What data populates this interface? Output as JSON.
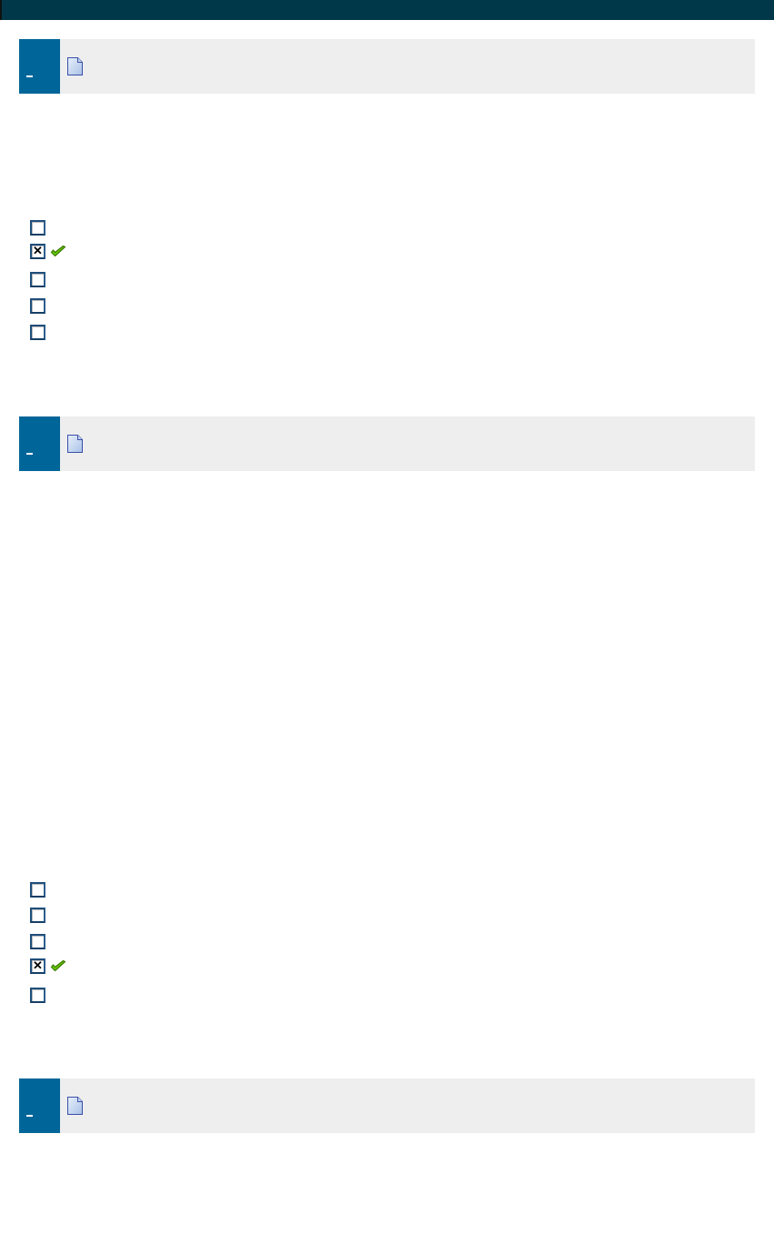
{
  "questions": [
    {
      "options": [
        {
          "checked": false
        },
        {
          "checked": true,
          "correct": true
        },
        {
          "checked": false
        },
        {
          "checked": false
        },
        {
          "checked": false
        }
      ]
    },
    {
      "options": [
        {
          "checked": false
        },
        {
          "checked": false
        },
        {
          "checked": false
        },
        {
          "checked": true,
          "correct": true
        },
        {
          "checked": false
        }
      ]
    },
    {
      "options": []
    }
  ],
  "colors": {
    "topbar": "#003849",
    "question_number": "#006699",
    "header_bg": "#eeeeee",
    "correct_tick": "#66cc00"
  },
  "icons": [
    "document-icon",
    "checkmark-icon"
  ]
}
